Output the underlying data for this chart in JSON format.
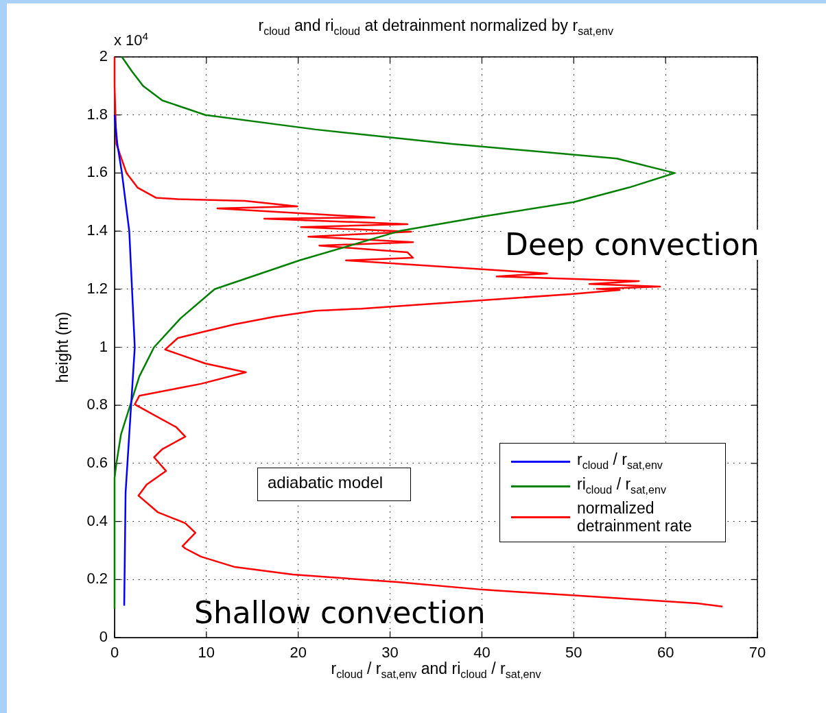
{
  "chart_data": {
    "type": "line",
    "title": "r$_{cloud}$ and ri$_{cloud}$ at detrainment normalized by r$_{sat,env}$",
    "xlabel": "r$_{cloud}$ / r$_{sat,env}$ and ri$_{cloud}$ / r$_{sat,env}$",
    "ylabel": "height (m)",
    "xlim": [
      0,
      70
    ],
    "xticks": [
      0,
      10,
      20,
      30,
      40,
      50,
      60,
      70
    ],
    "ylim": [
      0,
      2
    ],
    "yticks": [
      0,
      0.2,
      0.4,
      0.6,
      0.8,
      1,
      1.2,
      1.4,
      1.6,
      1.8,
      2
    ],
    "grid": true,
    "legend": "bottom right",
    "marker": "none",
    "line_style": "solid",
    "annotations": [
      "x 10$^{4}$",
      "Deep convection",
      "adiabatic model",
      "Shallow convection"
    ],
    "series": [
      {
        "name": "r$_{cloud}$ / r$_{sat,env}$",
        "color": "#0000ff",
        "x": [
          1.05,
          1.2,
          1.8,
          2.2,
          1.9,
          1.6,
          0.8,
          0.3,
          0
        ],
        "values": [
          0.11,
          0.5,
          0.8,
          1,
          1.2,
          1.4,
          1.6,
          1.7,
          1.8
        ]
      },
      {
        "name": "ri$_{cloud}$ / r$_{sat,env}$",
        "color": "#008000",
        "x": [
          0,
          0,
          0.2,
          0.7,
          1.7,
          2.7,
          4.3,
          7.2,
          10.9,
          20.2,
          31,
          40,
          50,
          56,
          61,
          54.7,
          36.8,
          21.9,
          9.9,
          5.2,
          3.1,
          1.9,
          0.8
        ],
        "values": [
          0.1,
          0.55,
          0.6,
          0.7,
          0.8,
          0.9,
          1,
          1.1,
          1.2,
          1.3,
          1.4,
          1.45,
          1.5,
          1.55,
          1.6,
          1.65,
          1.7,
          1.75,
          1.8,
          1.85,
          1.9,
          1.95,
          2
        ]
      },
      {
        "name": "normalized detrainment rate",
        "color": "#ff0000",
        "x": [
          66.2,
          63.4,
          50.7,
          40.1,
          30.8,
          19.4,
          13.1,
          9.4,
          7.7,
          7.4,
          8.8,
          7.7,
          4.7,
          2.6,
          3.5,
          5.6,
          4.3,
          5.2,
          7.7,
          6.7,
          2.2,
          2.7,
          9.4,
          14.3,
          9.9,
          5.5,
          6.9,
          9.9,
          13.1,
          17.4,
          21.9,
          26.9,
          49.7,
          55.0,
          52.5,
          59.4,
          51.7,
          57.1,
          41.6,
          47.1,
          25.2,
          32.5,
          31.9,
          22.3,
          32.5,
          21.1,
          32.3,
          20.3,
          31.9,
          16.3,
          28.3,
          11.2,
          19.9,
          14.2,
          6.9,
          4.5,
          2.5,
          1.3,
          0.2,
          0,
          0
        ],
        "values": [
          0.107,
          0.118,
          0.144,
          0.165,
          0.191,
          0.217,
          0.243,
          0.279,
          0.307,
          0.315,
          0.361,
          0.394,
          0.432,
          0.489,
          0.527,
          0.574,
          0.621,
          0.649,
          0.692,
          0.725,
          0.803,
          0.833,
          0.874,
          0.914,
          0.944,
          0.992,
          1.032,
          1.055,
          1.079,
          1.105,
          1.126,
          1.133,
          1.183,
          1.197,
          1.201,
          1.209,
          1.218,
          1.228,
          1.244,
          1.254,
          1.299,
          1.308,
          1.327,
          1.35,
          1.362,
          1.381,
          1.398,
          1.414,
          1.424,
          1.443,
          1.447,
          1.478,
          1.485,
          1.504,
          1.51,
          1.515,
          1.55,
          1.6,
          1.7,
          1.9,
          2
        ]
      }
    ]
  }
}
